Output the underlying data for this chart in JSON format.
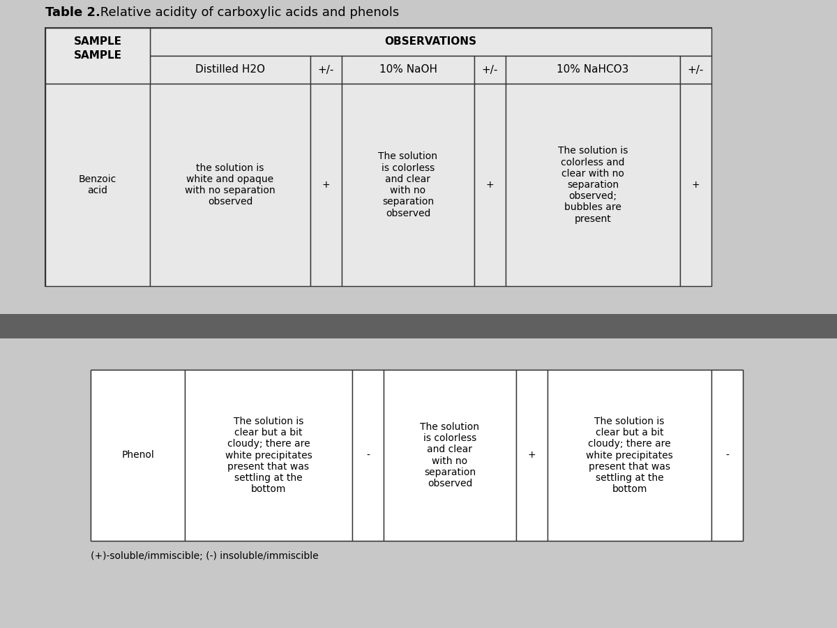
{
  "title_bold": "Table 2.",
  "title_rest": " Relative acidity of carboxylic acids and phenols",
  "background_color": "#c8c8c8",
  "table1_bg": "#e8e8e8",
  "table2_bg": "#f0f0f0",
  "header_row1": [
    "SAMPLE",
    "OBSERVATIONS"
  ],
  "header_row2": [
    "",
    "Distilled H2O",
    "+/-",
    "10% NaOH",
    "+/-",
    "10% NaHCO3",
    "+/-"
  ],
  "benzoic_row": [
    "Benzoic\nacid",
    "the solution is\nwhite and opaque\nwith no separation\nobserved",
    "+",
    "The solution\nis colorless\nand clear\nwith no\nseparation\nobserved",
    "+",
    "The solution is\ncolorless and\nclear with no\nseparation\nobserved;\nbubbles are\npresent",
    "+"
  ],
  "phenol_row": [
    "Phenol",
    "The solution is\nclear but a bit\ncloudy; there are\nwhite precipitates\npresent that was\nsettling at the\nbottom",
    "-",
    "The solution\nis colorless\nand clear\nwith no\nseparation\nobserved",
    "+",
    "The solution is\nclear but a bit\ncloudy; there are\nwhite precipitates\npresent that was\nsettling at the\nbottom",
    "-"
  ],
  "footnote": "(+)-soluble/immiscible; (-) insoluble/immiscible",
  "font_size_title": 13,
  "font_size_header": 11,
  "font_size_cell": 10,
  "font_size_footnote": 10,
  "table_border_color": "#333333",
  "header_text_color": "#000000",
  "cell_text_color": "#000000"
}
